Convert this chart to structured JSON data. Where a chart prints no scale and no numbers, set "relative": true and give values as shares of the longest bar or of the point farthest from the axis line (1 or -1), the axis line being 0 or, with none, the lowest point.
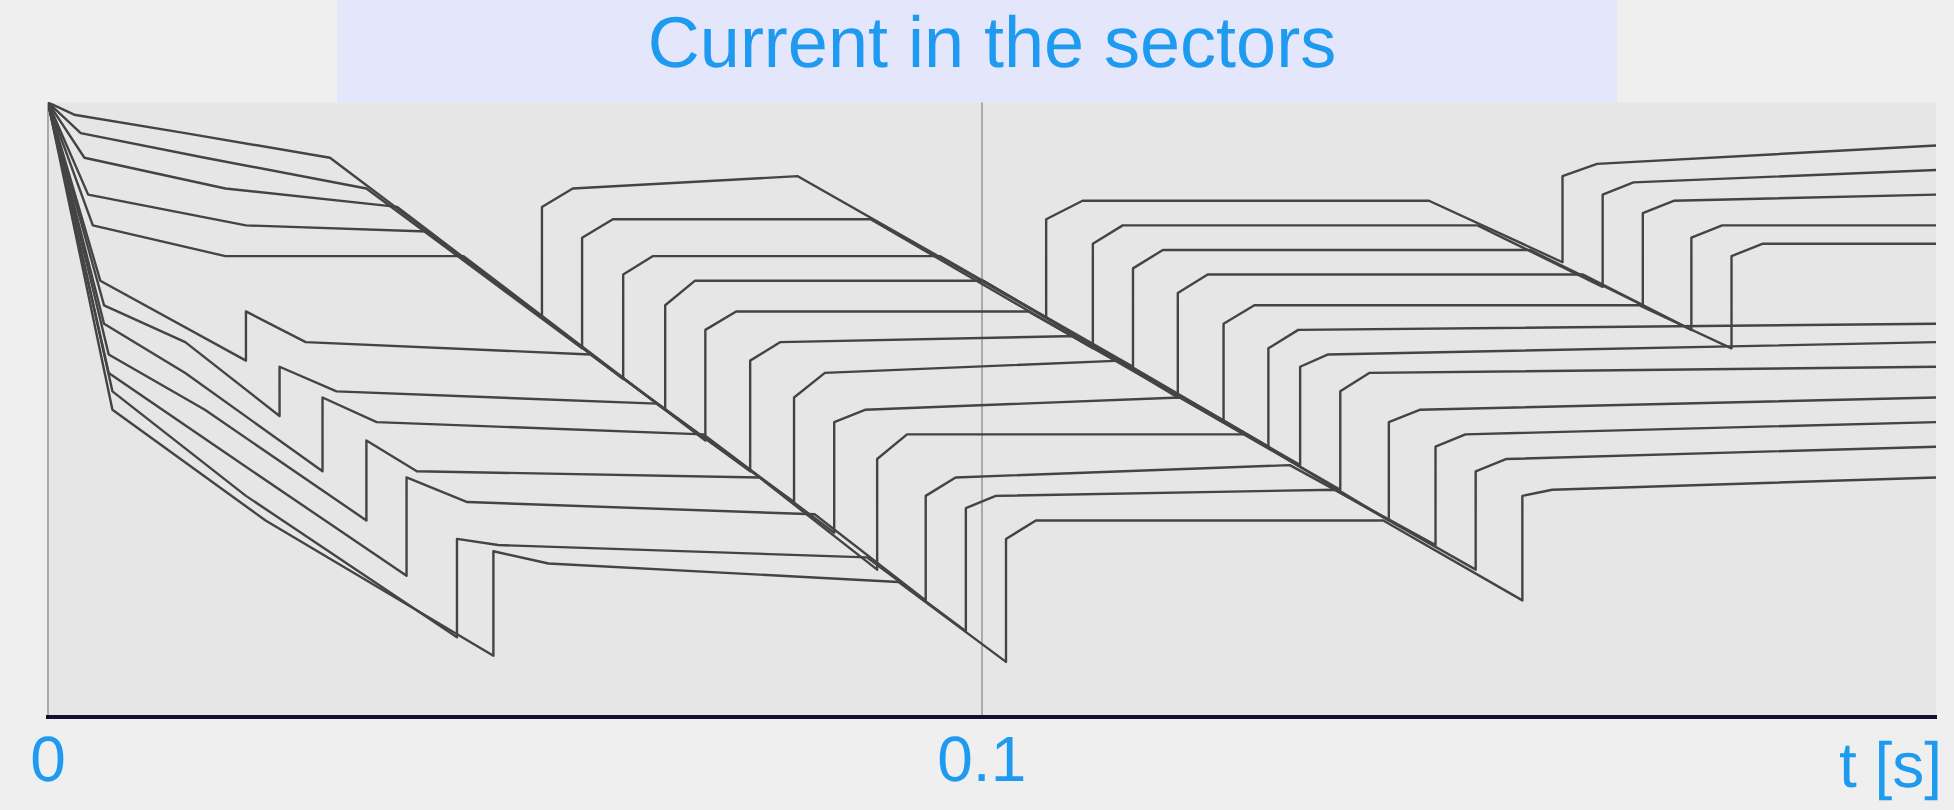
{
  "chart_data": {
    "type": "line",
    "title": "Current in the sectors",
    "xlabel": "t [s]",
    "relative": true,
    "xlim": [
      0,
      0.2022
    ],
    "xticks": [
      0,
      0.1
    ],
    "grid": "x",
    "legend": false,
    "line_style": "solid",
    "series": [
      {
        "color": "#444444",
        "x": [
          0,
          0.0028,
          0.0147,
          0.0302,
          0.0529,
          0.0529,
          0.0562,
          0.0803,
          0.1069,
          0.1069,
          0.1108,
          0.1479,
          0.1622,
          0.1622,
          0.1659,
          0.2022
        ],
        "values": [
          1.0,
          0.98,
          0.95,
          0.91,
          0.65,
          0.83,
          0.86,
          0.88,
          0.65,
          0.81,
          0.84,
          0.84,
          0.74,
          0.88,
          0.9,
          0.93
        ]
      },
      {
        "color": "#444444",
        "x": [
          0,
          0.0035,
          0.0168,
          0.0341,
          0.0572,
          0.0572,
          0.0605,
          0.0881,
          0.1119,
          0.1119,
          0.1151,
          0.1531,
          0.1665,
          0.1665,
          0.1698,
          0.2022
        ],
        "values": [
          1.0,
          0.95,
          0.91,
          0.86,
          0.6,
          0.78,
          0.81,
          0.81,
          0.6,
          0.77,
          0.8,
          0.8,
          0.7,
          0.85,
          0.87,
          0.89
        ]
      },
      {
        "color": "#444444",
        "x": [
          0,
          0.0039,
          0.019,
          0.0374,
          0.0616,
          0.0616,
          0.0648,
          0.0955,
          0.1162,
          0.1162,
          0.1194,
          0.1587,
          0.1708,
          0.1708,
          0.1741,
          0.2022
        ],
        "values": [
          1.0,
          0.91,
          0.86,
          0.83,
          0.55,
          0.72,
          0.75,
          0.75,
          0.57,
          0.73,
          0.76,
          0.76,
          0.67,
          0.82,
          0.84,
          0.85
        ]
      },
      {
        "color": "#444444",
        "x": [
          0,
          0.0043,
          0.0212,
          0.0406,
          0.0661,
          0.0661,
          0.0693,
          0.1002,
          0.121,
          0.121,
          0.1242,
          0.1644,
          0.176,
          0.176,
          0.1793,
          0.2022
        ],
        "values": [
          1.0,
          0.85,
          0.8,
          0.79,
          0.5,
          0.67,
          0.71,
          0.71,
          0.52,
          0.69,
          0.72,
          0.72,
          0.63,
          0.78,
          0.8,
          0.8
        ]
      },
      {
        "color": "#444444",
        "x": [
          0,
          0.0048,
          0.019,
          0.0445,
          0.0704,
          0.0704,
          0.0737,
          0.105,
          0.1259,
          0.1259,
          0.1292,
          0.1704,
          0.1803,
          0.1803,
          0.1836,
          0.2022
        ],
        "values": [
          1.0,
          0.8,
          0.75,
          0.75,
          0.45,
          0.63,
          0.66,
          0.66,
          0.48,
          0.64,
          0.67,
          0.67,
          0.6,
          0.75,
          0.77,
          0.77
        ]
      },
      {
        "color": "#444444",
        "x": [
          0,
          0.0056,
          0.0212,
          0.0212,
          0.0276,
          0.0581,
          0.0752,
          0.0752,
          0.0784,
          0.1102,
          0.1307,
          0.1307,
          0.1339,
          0.2022
        ],
        "values": [
          1.0,
          0.71,
          0.58,
          0.66,
          0.61,
          0.59,
          0.4,
          0.58,
          0.61,
          0.62,
          0.44,
          0.6,
          0.63,
          0.64
        ]
      },
      {
        "color": "#444444",
        "x": [
          0,
          0.006,
          0.0147,
          0.0248,
          0.0248,
          0.0309,
          0.0652,
          0.0799,
          0.0799,
          0.0832,
          0.1149,
          0.1341,
          0.1341,
          0.1371,
          0.2022
        ],
        "values": [
          1.0,
          0.67,
          0.61,
          0.49,
          0.57,
          0.53,
          0.51,
          0.35,
          0.52,
          0.56,
          0.58,
          0.41,
          0.57,
          0.59,
          0.61
        ]
      },
      {
        "color": "#444444",
        "x": [
          0,
          0.006,
          0.0147,
          0.0294,
          0.0294,
          0.0352,
          0.0702,
          0.0842,
          0.0842,
          0.0875,
          0.1212,
          0.1384,
          0.1384,
          0.1415,
          0.2022
        ],
        "values": [
          1.0,
          0.64,
          0.56,
          0.4,
          0.52,
          0.48,
          0.46,
          0.3,
          0.48,
          0.5,
          0.52,
          0.37,
          0.53,
          0.56,
          0.57
        ]
      },
      {
        "color": "#444444",
        "x": [
          0,
          0.0065,
          0.0168,
          0.0341,
          0.0341,
          0.0395,
          0.0762,
          0.0888,
          0.0888,
          0.092,
          0.1283,
          0.1436,
          0.1436,
          0.1469,
          0.2022
        ],
        "values": [
          1.0,
          0.59,
          0.5,
          0.32,
          0.45,
          0.4,
          0.39,
          0.24,
          0.42,
          0.46,
          0.46,
          0.32,
          0.48,
          0.5,
          0.52
        ]
      },
      {
        "color": "#444444",
        "x": [
          0,
          0.0065,
          0.019,
          0.0384,
          0.0384,
          0.0449,
          0.0821,
          0.094,
          0.094,
          0.0972,
          0.133,
          0.1486,
          0.1486,
          0.1518,
          0.2022
        ],
        "values": [
          1.0,
          0.56,
          0.43,
          0.23,
          0.39,
          0.35,
          0.33,
          0.19,
          0.36,
          0.39,
          0.41,
          0.28,
          0.44,
          0.46,
          0.48
        ]
      },
      {
        "color": "#444444",
        "x": [
          0,
          0.0069,
          0.0212,
          0.0438,
          0.0438,
          0.0482,
          0.0877,
          0.0983,
          0.0983,
          0.1015,
          0.1378,
          0.1529,
          0.1529,
          0.1562,
          0.2022
        ],
        "values": [
          1.0,
          0.53,
          0.36,
          0.13,
          0.29,
          0.28,
          0.26,
          0.14,
          0.34,
          0.36,
          0.37,
          0.24,
          0.4,
          0.42,
          0.44
        ]
      },
      {
        "color": "#444444",
        "x": [
          0,
          0.0069,
          0.0233,
          0.0477,
          0.0477,
          0.0536,
          0.0911,
          0.1026,
          0.1026,
          0.1058,
          0.143,
          0.1579,
          0.1579,
          0.1611,
          0.2022
        ],
        "values": [
          1.0,
          0.5,
          0.32,
          0.1,
          0.27,
          0.25,
          0.22,
          0.09,
          0.29,
          0.32,
          0.32,
          0.19,
          0.36,
          0.37,
          0.39
        ]
      }
    ]
  }
}
